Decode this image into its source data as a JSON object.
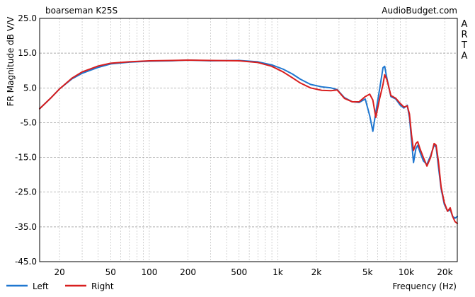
{
  "chart_data": {
    "type": "line",
    "title": "boarseman K25S",
    "source_label": "AudioBudget.com",
    "side_label": "ARTA",
    "xlabel": "Frequency (Hz)",
    "ylabel": "FR Magnitude dB V/V",
    "x_scale": "log",
    "xlim": [
      14,
      25000
    ],
    "ylim": [
      -45,
      25
    ],
    "x_ticks": [
      {
        "value": 20,
        "label": "20"
      },
      {
        "value": 50,
        "label": "50"
      },
      {
        "value": 100,
        "label": "100"
      },
      {
        "value": 200,
        "label": "200"
      },
      {
        "value": 500,
        "label": "500"
      },
      {
        "value": 1000,
        "label": "1k"
      },
      {
        "value": 2000,
        "label": "2k"
      },
      {
        "value": 5000,
        "label": "5k"
      },
      {
        "value": 10000,
        "label": "10k"
      },
      {
        "value": 20000,
        "label": "20k"
      }
    ],
    "y_ticks": [
      {
        "value": 25,
        "label": "25.0"
      },
      {
        "value": 15,
        "label": "15.0"
      },
      {
        "value": 5,
        "label": "5.0"
      },
      {
        "value": -5,
        "label": "-5.0"
      },
      {
        "value": -15,
        "label": "-15.0"
      },
      {
        "value": -25,
        "label": "-25.0"
      },
      {
        "value": -35,
        "label": "-35.0"
      },
      {
        "value": -45,
        "label": "-45.0"
      }
    ],
    "grid": true,
    "legend_position": "bottom-left",
    "series": [
      {
        "name": "Left",
        "color": "#1f77d0",
        "points": [
          [
            14,
            -1.0
          ],
          [
            17,
            2.0
          ],
          [
            20,
            4.7
          ],
          [
            25,
            7.6
          ],
          [
            30,
            9.2
          ],
          [
            40,
            10.9
          ],
          [
            50,
            11.9
          ],
          [
            70,
            12.4
          ],
          [
            100,
            12.7
          ],
          [
            150,
            12.8
          ],
          [
            200,
            13.0
          ],
          [
            300,
            12.8
          ],
          [
            500,
            12.9
          ],
          [
            700,
            12.5
          ],
          [
            900,
            11.6
          ],
          [
            1100,
            10.4
          ],
          [
            1300,
            9.0
          ],
          [
            1500,
            7.5
          ],
          [
            1800,
            6.0
          ],
          [
            2200,
            5.3
          ],
          [
            2600,
            5.0
          ],
          [
            2900,
            4.5
          ],
          [
            3300,
            2.2
          ],
          [
            3800,
            1.0
          ],
          [
            4300,
            0.8
          ],
          [
            4800,
            1.8
          ],
          [
            5200,
            -3.0
          ],
          [
            5500,
            -7.5
          ],
          [
            5800,
            -2.0
          ],
          [
            6200,
            4.5
          ],
          [
            6600,
            10.8
          ],
          [
            6800,
            11.2
          ],
          [
            7100,
            7.5
          ],
          [
            7600,
            2.5
          ],
          [
            8300,
            1.8
          ],
          [
            9000,
            0.0
          ],
          [
            9600,
            -0.8
          ],
          [
            10200,
            0.0
          ],
          [
            10600,
            -3.5
          ],
          [
            11000,
            -10.0
          ],
          [
            11400,
            -16.5
          ],
          [
            11900,
            -12.5
          ],
          [
            12300,
            -11.5
          ],
          [
            12800,
            -13.5
          ],
          [
            13600,
            -16.0
          ],
          [
            14500,
            -17.0
          ],
          [
            15500,
            -14.5
          ],
          [
            16500,
            -11.5
          ],
          [
            17100,
            -12.0
          ],
          [
            17800,
            -17.5
          ],
          [
            18700,
            -24.0
          ],
          [
            19800,
            -28.5
          ],
          [
            21000,
            -30.5
          ],
          [
            22000,
            -30.0
          ],
          [
            23000,
            -32.0
          ],
          [
            24000,
            -32.5
          ],
          [
            25000,
            -32.0
          ]
        ]
      },
      {
        "name": "Right",
        "color": "#d81f1f",
        "points": [
          [
            14,
            -1.0
          ],
          [
            17,
            2.0
          ],
          [
            20,
            4.7
          ],
          [
            25,
            7.8
          ],
          [
            30,
            9.6
          ],
          [
            40,
            11.3
          ],
          [
            50,
            12.1
          ],
          [
            70,
            12.5
          ],
          [
            100,
            12.8
          ],
          [
            150,
            12.9
          ],
          [
            200,
            13.0
          ],
          [
            300,
            12.9
          ],
          [
            500,
            12.8
          ],
          [
            700,
            12.3
          ],
          [
            900,
            11.2
          ],
          [
            1100,
            9.6
          ],
          [
            1300,
            7.9
          ],
          [
            1500,
            6.4
          ],
          [
            1800,
            5.0
          ],
          [
            2200,
            4.3
          ],
          [
            2600,
            4.2
          ],
          [
            2900,
            4.4
          ],
          [
            3300,
            2.0
          ],
          [
            3800,
            1.0
          ],
          [
            4300,
            1.0
          ],
          [
            4800,
            2.5
          ],
          [
            5200,
            3.2
          ],
          [
            5500,
            1.5
          ],
          [
            5800,
            -3.5
          ],
          [
            6200,
            1.8
          ],
          [
            6600,
            6.0
          ],
          [
            6800,
            8.8
          ],
          [
            7100,
            7.2
          ],
          [
            7600,
            2.8
          ],
          [
            8300,
            2.0
          ],
          [
            9000,
            0.5
          ],
          [
            9600,
            -0.5
          ],
          [
            10200,
            -0.2
          ],
          [
            10600,
            -2.5
          ],
          [
            11000,
            -8.5
          ],
          [
            11400,
            -13.0
          ],
          [
            11900,
            -11.0
          ],
          [
            12300,
            -10.5
          ],
          [
            12800,
            -12.5
          ],
          [
            13600,
            -15.0
          ],
          [
            14500,
            -17.5
          ],
          [
            15500,
            -15.0
          ],
          [
            16500,
            -11.0
          ],
          [
            17100,
            -11.5
          ],
          [
            17800,
            -16.0
          ],
          [
            18700,
            -23.5
          ],
          [
            19800,
            -28.0
          ],
          [
            21000,
            -30.5
          ],
          [
            22000,
            -29.5
          ],
          [
            23000,
            -32.0
          ],
          [
            24000,
            -33.5
          ],
          [
            25000,
            -34.0
          ]
        ]
      }
    ]
  }
}
